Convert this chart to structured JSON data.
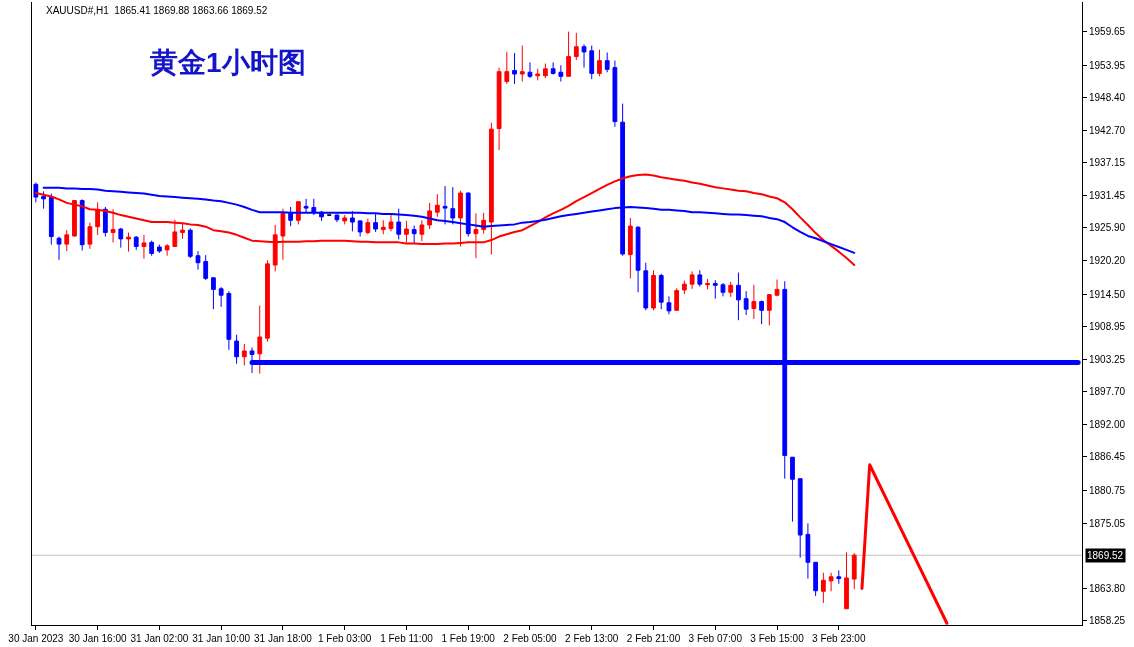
{
  "chart_data": {
    "type": "candlestick",
    "title": "黄金1小时图",
    "subtitle": "XAUUSD#,H1  1865.41 1869.88 1863.66 1869.52",
    "categories": [
      "30 Jan 2023",
      null,
      null,
      null,
      null,
      null,
      null,
      null,
      "30 Jan 16:00",
      null,
      null,
      null,
      null,
      null,
      null,
      null,
      "31 Jan 02:00",
      null,
      null,
      null,
      null,
      null,
      null,
      null,
      "31 Jan 10:00",
      null,
      null,
      null,
      null,
      null,
      null,
      null,
      "31 Jan 18:00",
      null,
      null,
      null,
      null,
      null,
      null,
      null,
      "1 Feb 03:00",
      null,
      null,
      null,
      null,
      null,
      null,
      null,
      "1 Feb 11:00",
      null,
      null,
      null,
      null,
      null,
      null,
      null,
      "1 Feb 19:00",
      null,
      null,
      null,
      null,
      null,
      null,
      null,
      "2 Feb 05:00",
      null,
      null,
      null,
      null,
      null,
      null,
      null,
      "2 Feb 13:00",
      null,
      null,
      null,
      null,
      null,
      null,
      null,
      "2 Feb 21:00",
      null,
      null,
      null,
      null,
      null,
      null,
      null,
      "3 Feb 07:00",
      null,
      null,
      null,
      null,
      null,
      null,
      null,
      "3 Feb 15:00",
      null,
      null,
      null,
      null,
      null,
      null,
      null,
      "3 Feb 23:00",
      null,
      null,
      null,
      null,
      null,
      null,
      null,
      null,
      null,
      null,
      null,
      null,
      null,
      null,
      null,
      null,
      null,
      null,
      null,
      null,
      null,
      null,
      null,
      null,
      null,
      null,
      null,
      null,
      null,
      null,
      null
    ],
    "ohlc": [
      [
        1933.4,
        1933.7,
        1930.3,
        1931.2
      ],
      [
        1931.3,
        1932.2,
        1929.2,
        1930.9
      ],
      [
        1931.2,
        1931.8,
        1923.0,
        1924.4
      ],
      [
        1924.1,
        1924.4,
        1920.4,
        1923.1
      ],
      [
        1923.1,
        1925.5,
        1921.9,
        1924.7
      ],
      [
        1924.5,
        1930.7,
        1924.4,
        1930.6
      ],
      [
        1930.6,
        1930.8,
        1922.0,
        1923.0
      ],
      [
        1923.1,
        1926.8,
        1922.3,
        1926.1
      ],
      [
        1926.1,
        1930.3,
        1924.7,
        1929.0
      ],
      [
        1929.1,
        1929.5,
        1924.4,
        1925.1
      ],
      [
        1925.1,
        1929.1,
        1923.4,
        1925.6
      ],
      [
        1925.7,
        1925.9,
        1922.5,
        1924.0
      ],
      [
        1924.0,
        1925.1,
        1921.8,
        1924.3
      ],
      [
        1924.3,
        1924.5,
        1922.1,
        1922.7
      ],
      [
        1922.7,
        1924.7,
        1920.6,
        1923.3
      ],
      [
        1923.4,
        1923.7,
        1921.1,
        1921.5
      ],
      [
        1922.6,
        1923.0,
        1921.6,
        1921.9
      ],
      [
        1922.1,
        1923.1,
        1921.1,
        1922.8
      ],
      [
        1922.7,
        1927.3,
        1922.6,
        1925.2
      ],
      [
        1925.1,
        1926.7,
        1924.0,
        1925.5
      ],
      [
        1925.5,
        1925.8,
        1920.7,
        1921.0
      ],
      [
        1921.1,
        1921.9,
        1918.7,
        1919.9
      ],
      [
        1920.1,
        1921.2,
        1916.9,
        1917.2
      ],
      [
        1917.3,
        1917.4,
        1911.9,
        1915.3
      ],
      [
        1915.4,
        1915.7,
        1912.3,
        1914.3
      ],
      [
        1914.6,
        1915.0,
        1904.9,
        1906.7
      ],
      [
        1906.4,
        1907.5,
        1902.5,
        1903.7
      ],
      [
        1903.7,
        1905.9,
        1902.2,
        1904.7
      ],
      [
        1904.7,
        1905.3,
        1900.9,
        1904.1
      ],
      [
        1904.2,
        1912.5,
        1900.8,
        1907.1
      ],
      [
        1906.9,
        1920.3,
        1906.3,
        1919.7
      ],
      [
        1919.5,
        1926.4,
        1918.4,
        1924.7
      ],
      [
        1924.5,
        1929.2,
        1920.4,
        1928.4
      ],
      [
        1928.5,
        1929.5,
        1926.2,
        1927.2
      ],
      [
        1927.2,
        1930.5,
        1926.5,
        1930.4
      ],
      [
        1929.6,
        1930.9,
        1928.5,
        1929.3
      ],
      [
        1929.4,
        1930.9,
        1928.1,
        1928.5
      ],
      [
        1928.6,
        1928.8,
        1927.1,
        1927.8
      ],
      [
        1928.1,
        1928.1,
        1928.1,
        1928.1
      ],
      [
        1928.1,
        1928.2,
        1926.9,
        1927.3
      ],
      [
        1927.1,
        1928.1,
        1926.5,
        1927.6
      ],
      [
        1927.6,
        1928.8,
        1925.3,
        1926.9
      ],
      [
        1927.1,
        1927.2,
        1924.4,
        1925.2
      ],
      [
        1925.1,
        1927.5,
        1924.8,
        1926.8
      ],
      [
        1926.8,
        1928.5,
        1925.2,
        1925.7
      ],
      [
        1925.6,
        1927.2,
        1924.8,
        1926.0
      ],
      [
        1925.8,
        1928.1,
        1925.3,
        1926.9
      ],
      [
        1926.9,
        1929.2,
        1923.9,
        1924.8
      ],
      [
        1924.8,
        1927.1,
        1923.4,
        1925.7
      ],
      [
        1925.6,
        1926.3,
        1923.2,
        1924.9
      ],
      [
        1924.8,
        1927.2,
        1923.6,
        1926.4
      ],
      [
        1926.4,
        1930.2,
        1925.7,
        1928.8
      ],
      [
        1928.6,
        1931.7,
        1927.8,
        1929.8
      ],
      [
        1929.6,
        1933.1,
        1926.5,
        1929.3
      ],
      [
        1929.2,
        1932.9,
        1926.5,
        1927.6
      ],
      [
        1927.6,
        1932.3,
        1922.7,
        1931.9
      ],
      [
        1931.9,
        1932.0,
        1924.4,
        1924.9
      ],
      [
        1924.9,
        1928.4,
        1920.7,
        1925.6
      ],
      [
        1925.6,
        1928.5,
        1924.9,
        1927.2
      ],
      [
        1926.9,
        1944.0,
        1921.3,
        1942.9
      ],
      [
        1943.0,
        1953.5,
        1939.3,
        1952.8
      ],
      [
        1951.1,
        1956.2,
        1950.7,
        1952.8
      ],
      [
        1953.0,
        1956.0,
        1950.7,
        1952.4
      ],
      [
        1952.4,
        1957.3,
        1951.1,
        1952.8
      ],
      [
        1952.7,
        1954.4,
        1951.7,
        1952.0
      ],
      [
        1952.1,
        1953.3,
        1951.3,
        1952.4
      ],
      [
        1952.1,
        1954.2,
        1951.7,
        1953.3
      ],
      [
        1953.3,
        1954.4,
        1952.3,
        1952.5
      ],
      [
        1952.7,
        1953.9,
        1951.1,
        1952.0
      ],
      [
        1952.0,
        1959.7,
        1952.0,
        1955.4
      ],
      [
        1955.4,
        1959.5,
        1954.8,
        1957.1
      ],
      [
        1957.1,
        1957.5,
        1953.5,
        1956.2
      ],
      [
        1956.4,
        1957.3,
        1951.5,
        1952.5
      ],
      [
        1952.5,
        1956.6,
        1952.0,
        1954.7
      ],
      [
        1954.7,
        1956.1,
        1952.7,
        1953.2
      ],
      [
        1953.5,
        1954.7,
        1943.3,
        1944.2
      ],
      [
        1944.1,
        1947.3,
        1921.1,
        1921.4
      ],
      [
        1921.3,
        1927.6,
        1917.2,
        1926.2
      ],
      [
        1926.0,
        1926.2,
        1914.8,
        1918.6
      ],
      [
        1918.5,
        1919.9,
        1911.7,
        1912.1
      ],
      [
        1912.1,
        1918.6,
        1911.7,
        1917.7
      ],
      [
        1917.7,
        1918.0,
        1911.9,
        1913.1
      ],
      [
        1913.0,
        1914.1,
        1911.0,
        1911.6
      ],
      [
        1911.7,
        1915.5,
        1911.6,
        1915.1
      ],
      [
        1915.2,
        1916.8,
        1914.5,
        1916.2
      ],
      [
        1916.2,
        1918.4,
        1915.4,
        1917.8
      ],
      [
        1917.8,
        1918.6,
        1915.8,
        1916.2
      ],
      [
        1916.1,
        1917.1,
        1915.3,
        1916.3
      ],
      [
        1916.3,
        1916.9,
        1913.7,
        1916.0
      ],
      [
        1916.1,
        1916.4,
        1914.1,
        1914.8
      ],
      [
        1914.8,
        1916.6,
        1914.0,
        1916.0
      ],
      [
        1916.0,
        1918.2,
        1910.0,
        1913.5
      ],
      [
        1913.7,
        1915.0,
        1910.9,
        1911.9
      ],
      [
        1912.0,
        1916.1,
        1910.2,
        1913.2
      ],
      [
        1913.2,
        1913.4,
        1909.3,
        1911.7
      ],
      [
        1911.7,
        1914.5,
        1909.1,
        1914.4
      ],
      [
        1914.3,
        1917.0,
        1914.1,
        1915.3
      ],
      [
        1915.3,
        1916.7,
        1882.7,
        1886.7
      ],
      [
        1886.4,
        1886.4,
        1875.3,
        1882.6
      ],
      [
        1882.7,
        1882.7,
        1869.1,
        1873.0
      ],
      [
        1873.1,
        1875.0,
        1865.5,
        1868.3
      ],
      [
        1868.3,
        1868.3,
        1862.5,
        1863.4
      ],
      [
        1863.3,
        1866.5,
        1861.3,
        1865.2
      ],
      [
        1865.1,
        1866.5,
        1863.3,
        1865.8
      ],
      [
        1865.8,
        1866.9,
        1864.6,
        1865.5
      ],
      [
        1860.3,
        1870.0,
        1860.3,
        1865.6
      ],
      [
        1865.41,
        1869.88,
        1863.66,
        1869.52
      ],
      null,
      null,
      null,
      null,
      null,
      null,
      null,
      null,
      null,
      null,
      null,
      null,
      null,
      null,
      null,
      null,
      null,
      null,
      null,
      null,
      null,
      null,
      null,
      null,
      null,
      null,
      null,
      null,
      null
    ],
    "colors": [
      "#0000ff",
      "#0000ff",
      "#0000ff",
      "#0000ff",
      "#ff0000",
      "#ff0000",
      "#0000ff",
      "#ff0000",
      "#ff0000",
      "#0000ff",
      "#ff0000",
      "#0000ff",
      "#ff0000",
      "#0000ff",
      "#ff0000",
      "#0000ff",
      "#0000ff",
      "#ff0000",
      "#ff0000",
      "#ff0000",
      "#0000ff",
      "#0000ff",
      "#0000ff",
      "#0000ff",
      "#0000ff",
      "#0000ff",
      "#0000ff",
      "#ff0000",
      "#0000ff",
      "#ff0000",
      "#ff0000",
      "#ff0000",
      "#ff0000",
      "#0000ff",
      "#ff0000",
      "#0000ff",
      "#0000ff",
      "#0000ff",
      "#000000",
      "#0000ff",
      "#ff0000",
      "#0000ff",
      "#0000ff",
      "#ff0000",
      "#0000ff",
      "#ff0000",
      "#ff0000",
      "#0000ff",
      "#ff0000",
      "#0000ff",
      "#ff0000",
      "#ff0000",
      "#ff0000",
      "#0000ff",
      "#0000ff",
      "#ff0000",
      "#0000ff",
      "#ff0000",
      "#ff0000",
      "#ff0000",
      "#ff0000",
      "#ff0000",
      "#0000ff",
      "#ff0000",
      "#0000ff",
      "#ff0000",
      "#ff0000",
      "#0000ff",
      "#0000ff",
      "#ff0000",
      "#ff0000",
      "#0000ff",
      "#0000ff",
      "#ff0000",
      "#0000ff",
      "#0000ff",
      "#0000ff",
      "#ff0000",
      "#0000ff",
      "#0000ff",
      "#ff0000",
      "#0000ff",
      "#0000ff",
      "#ff0000",
      "#ff0000",
      "#ff0000",
      "#0000ff",
      "#ff0000",
      "#0000ff",
      "#0000ff",
      "#ff0000",
      "#0000ff",
      "#0000ff",
      "#ff0000",
      "#0000ff",
      "#ff0000",
      "#ff0000",
      "#0000ff",
      "#0000ff",
      "#0000ff",
      "#0000ff",
      "#0000ff",
      "#ff0000",
      "#ff0000",
      "#0000ff",
      "#ff0000",
      "#ff0000",
      null,
      null,
      null,
      null,
      null,
      null,
      null,
      null,
      null,
      null,
      null,
      null,
      null,
      null,
      null,
      null,
      null,
      null,
      null,
      null,
      null,
      null,
      null,
      null,
      null,
      null,
      null,
      null,
      null
    ],
    "series": [
      {
        "type": "line",
        "color": "#ff0000",
        "values": [
          1931.9,
          1931.6,
          1931.3,
          1930.8,
          1930.2,
          1929.9,
          1929.6,
          1929.1,
          1929.0,
          1928.8,
          1928.5,
          1928.1,
          1927.8,
          1927.5,
          1927.2,
          1926.9,
          1926.9,
          1926.9,
          1926.8,
          1926.7,
          1926.5,
          1926.4,
          1926.1,
          1925.5,
          1925.3,
          1925.1,
          1924.7,
          1924.2,
          1923.7,
          1923.6,
          1923.5,
          1923.4,
          1923.5,
          1923.5,
          1923.5,
          1923.6,
          1923.6,
          1923.7,
          1923.7,
          1923.7,
          1923.7,
          1923.6,
          1923.5,
          1923.5,
          1923.4,
          1923.4,
          1923.4,
          1923.4,
          1923.2,
          1923.2,
          1923.1,
          1923.1,
          1923.1,
          1923.2,
          1923.2,
          1923.3,
          1923.4,
          1923.4,
          1923.4,
          1923.8,
          1924.4,
          1924.8,
          1925.2,
          1925.5,
          1926.2,
          1926.9,
          1927.7,
          1928.4,
          1929.0,
          1929.7,
          1930.5,
          1931.2,
          1931.9,
          1932.6,
          1933.3,
          1933.9,
          1934.4,
          1934.8,
          1935.0,
          1935.1,
          1934.9,
          1934.6,
          1934.4,
          1934.2,
          1934.0,
          1933.7,
          1933.5,
          1933.2,
          1932.9,
          1932.7,
          1932.5,
          1932.3,
          1932.2,
          1931.9,
          1931.7,
          1931.3,
          1931.0,
          1930.3,
          1929.1,
          1927.7,
          1926.4,
          1925.0,
          1923.8,
          1922.8,
          1921.8,
          1920.7,
          1919.5,
          null,
          null,
          null,
          null,
          null,
          null,
          null,
          null,
          null,
          null,
          null,
          null,
          null,
          null,
          null,
          null,
          null,
          null,
          null,
          null,
          null,
          null,
          null,
          null,
          null,
          null,
          null,
          null,
          null
        ]
      },
      {
        "type": "line",
        "color": "#0000ff",
        "values": [
          null,
          1932.8,
          1932.8,
          1932.8,
          1932.7,
          1932.7,
          1932.6,
          1932.6,
          1932.5,
          1932.3,
          1932.2,
          1932.1,
          1932.0,
          1931.9,
          1931.8,
          1931.6,
          1931.4,
          1931.3,
          1931.2,
          1931.1,
          1931.0,
          1930.9,
          1930.8,
          1930.6,
          1930.5,
          1930.2,
          1929.9,
          1929.5,
          1929.0,
          1928.6,
          1928.6,
          1928.6,
          1928.6,
          1928.5,
          1928.5,
          1928.5,
          1928.5,
          1928.5,
          1928.5,
          1928.5,
          1928.5,
          1928.5,
          1928.5,
          1928.4,
          1928.4,
          1928.3,
          1928.3,
          1928.2,
          1928.1,
          1928.0,
          1927.8,
          1927.5,
          1927.2,
          1927.1,
          1926.9,
          1926.7,
          1926.5,
          1926.3,
          1926.1,
          1926.2,
          1926.3,
          1926.4,
          1926.5,
          1926.8,
          1926.9,
          1927.1,
          1927.3,
          1927.6,
          1927.9,
          1928.1,
          1928.3,
          1928.5,
          1928.7,
          1928.9,
          1929.1,
          1929.3,
          1929.4,
          1929.5,
          1929.4,
          1929.3,
          1929.2,
          1929.0,
          1929.0,
          1928.9,
          1928.8,
          1928.6,
          1928.6,
          1928.5,
          1928.4,
          1928.3,
          1928.2,
          1928.2,
          1928.1,
          1928.0,
          1927.9,
          1927.6,
          1927.4,
          1926.9,
          1926.0,
          1925.2,
          1924.5,
          1924.1,
          1923.6,
          1923.1,
          1922.6,
          1922.1,
          1921.6,
          null,
          null,
          null,
          null,
          null,
          null,
          null,
          null,
          null,
          null,
          null,
          null,
          null,
          null,
          null,
          null,
          null,
          null,
          null,
          null,
          null,
          null,
          null,
          null,
          null,
          null,
          null,
          null,
          null
        ]
      },
      {
        "type": "line",
        "color": "#0000ff",
        "values": [
          null,
          null,
          null,
          null,
          null,
          null,
          null,
          null,
          null,
          null,
          null,
          null,
          null,
          null,
          null,
          null,
          null,
          null,
          null,
          null,
          null,
          null,
          null,
          null,
          null,
          null,
          null,
          null,
          1902.7,
          null,
          null,
          null,
          null,
          null,
          null,
          null,
          null,
          null,
          null,
          null,
          null,
          null,
          null,
          null,
          null,
          null,
          null,
          null,
          null,
          null,
          null,
          null,
          null,
          null,
          null,
          null,
          null,
          null,
          null,
          null,
          null,
          null,
          null,
          null,
          null,
          null,
          null,
          null,
          null,
          null,
          null,
          null,
          null,
          null,
          null,
          null,
          null,
          null,
          null,
          null,
          null,
          null,
          null,
          null,
          null,
          null,
          null,
          null,
          null,
          null,
          null,
          null,
          null,
          null,
          null,
          null,
          null,
          null,
          null,
          null,
          null,
          null,
          null,
          null,
          null,
          null,
          null,
          null,
          null,
          null,
          null,
          null,
          null,
          null,
          null,
          null,
          null,
          null,
          null,
          null,
          null,
          null,
          null,
          null,
          null,
          null,
          null,
          null,
          null,
          null,
          null,
          null,
          null,
          null,
          null,
          1902.7
        ]
      },
      {
        "type": "line",
        "color": "#ff0000",
        "values": [
          null,
          null,
          null,
          null,
          null,
          null,
          null,
          null,
          null,
          null,
          null,
          null,
          null,
          null,
          null,
          null,
          null,
          null,
          null,
          null,
          null,
          null,
          null,
          null,
          null,
          null,
          null,
          null,
          null,
          null,
          null,
          null,
          null,
          null,
          null,
          null,
          null,
          null,
          null,
          null,
          null,
          null,
          null,
          null,
          null,
          null,
          null,
          null,
          null,
          null,
          null,
          null,
          null,
          null,
          null,
          null,
          null,
          null,
          null,
          null,
          null,
          null,
          null,
          null,
          null,
          null,
          null,
          null,
          null,
          null,
          null,
          null,
          null,
          null,
          null,
          null,
          null,
          null,
          null,
          null,
          null,
          null,
          null,
          null,
          null,
          null,
          null,
          null,
          null,
          null,
          null,
          null,
          null,
          null,
          null,
          null,
          null,
          null,
          null,
          null,
          null,
          null,
          null,
          null,
          null,
          null,
          null,
          1863.8,
          1885.1,
          null,
          null,
          null,
          null,
          null,
          null,
          null,
          null,
          null,
          1857.8,
          null,
          null,
          null,
          null,
          null,
          null,
          null,
          null,
          null,
          null,
          null,
          null,
          null,
          null,
          null,
          null,
          null
        ]
      }
    ],
    "ylim": [
      1857.5,
      1964.8
    ],
    "yticks": [
      1959.65,
      1953.95,
      {
        "value": 1948.4,
        "label": "1948.40"
      },
      {
        "value": 1942.7,
        "label": "1942.70"
      },
      1937.15,
      1931.45,
      {
        "value": 1925.9,
        "label": "1925.90"
      },
      {
        "value": 1920.2,
        "label": "1920.20"
      },
      {
        "value": 1914.5,
        "label": "1914.50"
      },
      1908.95,
      1903.25,
      {
        "value": 1897.7,
        "label": "1897.70"
      },
      {
        "value": 1892.0,
        "label": "1892.00"
      },
      1886.45,
      1880.75,
      1875.05,
      {
        "value": 1863.8,
        "label": "1863.80"
      },
      1858.25
    ],
    "ref_lines": [
      {
        "axis": "y",
        "value": 1869.52,
        "label": "1869.52",
        "color": "#c0c0c0"
      }
    ]
  }
}
